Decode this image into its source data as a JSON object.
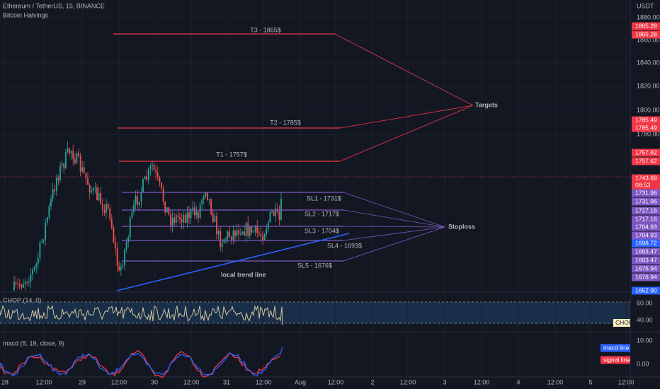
{
  "header": {
    "symbol": "Ethereum / TetherUS, 15, BINANCE",
    "indicator": "Bitcoin Halvings"
  },
  "price_axis": {
    "currency": "USDT",
    "ticks": [
      "1880.00",
      "1860.00",
      "1840.00",
      "1820.00",
      "1800.00",
      "1780.00"
    ]
  },
  "price_tags": [
    "1865.28",
    "1865.28",
    "1785.49",
    "1785.49",
    "1757.62",
    "1757.62",
    "1743.69",
    "08:53",
    "1731.96",
    "1731.96",
    "1717.16",
    "1717.16",
    "1704.93",
    "1704.93",
    "1698.72",
    "1693.47",
    "1693.47",
    "1676.94",
    "1676.94",
    "1652.90"
  ],
  "time_axis": [
    "28",
    "12:00",
    "29",
    "12:00",
    "30",
    "12:00",
    "31",
    "12:00",
    "Aug",
    "12:00",
    "2",
    "12:00",
    "3",
    "12:00",
    "4",
    "12:00",
    "5",
    "12:00"
  ],
  "targets": {
    "label": "Targets",
    "levels": [
      "T3 - 1865$",
      "T2 - 1785$",
      "T1 - 1757$"
    ]
  },
  "stoploss": {
    "label": "Stoploss",
    "levels": [
      "SL1 - 1731$",
      "SL2 - 1717$",
      "SL3 - 1704$",
      "SL4 - 1693$",
      "SL5 - 1676$"
    ]
  },
  "trend_line": "local trend line",
  "chop": {
    "label": "CHOP (14, 0)",
    "ticks": [
      "60.00",
      "40.00"
    ],
    "tag": "CHOP"
  },
  "macd": {
    "label": "macd (8, 19, close, 9)",
    "ticks": [
      "10.00",
      "0.00"
    ],
    "tags": [
      "macd line",
      "signal line"
    ]
  }
}
